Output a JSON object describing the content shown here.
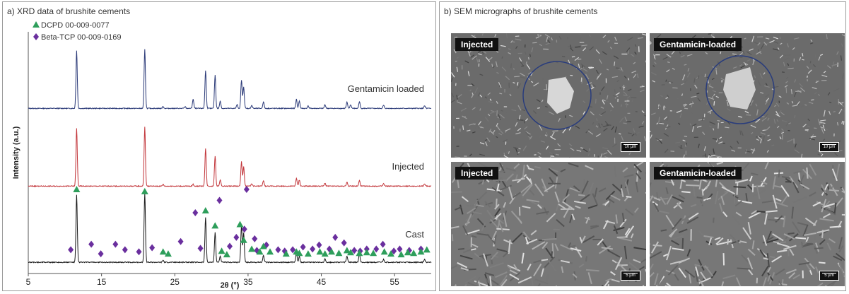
{
  "panel_a": {
    "title": "a) XRD data of brushite cements"
  },
  "panel_b": {
    "title": "b) SEM micrographs of brushite cements",
    "images": [
      {
        "label": "Injected",
        "scale": "10 µm"
      },
      {
        "label": "Gentamicin-loaded",
        "scale": "10 µm"
      },
      {
        "label": "Injected",
        "scale": "5 µm"
      },
      {
        "label": "Gentamicin-loaded",
        "scale": "5 µm"
      }
    ]
  },
  "colors": {
    "gentamicin": "#2b3a78",
    "injected": "#c2353a",
    "cast": "#1a1a1a",
    "dcpd": "#2e9e5b",
    "btcp": "#6a2f9e"
  },
  "chart_data": {
    "type": "line",
    "xlabel": "2θ (°)",
    "ylabel": "Intensity (a.u.)",
    "xlim": [
      5,
      60
    ],
    "xticks": [
      5,
      15,
      25,
      35,
      45,
      55
    ],
    "legend": {
      "placement": "top-left",
      "entries": [
        {
          "name": "DCPD 00-009-0077",
          "marker": "triangle"
        },
        {
          "name": "Beta-TCP 00-009-0169",
          "marker": "diamond"
        }
      ]
    },
    "series": [
      {
        "name": "Gentamicin loaded",
        "peaks": [
          [
            11.6,
            95
          ],
          [
            20.9,
            97
          ],
          [
            23.4,
            3
          ],
          [
            26.4,
            3
          ],
          [
            27.5,
            15
          ],
          [
            29.2,
            62
          ],
          [
            30.5,
            55
          ],
          [
            31.2,
            12
          ],
          [
            33.5,
            6
          ],
          [
            34.1,
            47
          ],
          [
            34.4,
            36
          ],
          [
            35.5,
            5
          ],
          [
            37.1,
            11
          ],
          [
            41.6,
            15
          ],
          [
            42.0,
            12
          ],
          [
            43.2,
            4
          ],
          [
            45.5,
            6
          ],
          [
            48.5,
            10
          ],
          [
            49.0,
            6
          ],
          [
            50.2,
            11
          ],
          [
            53.5,
            5
          ],
          [
            59.1,
            4
          ]
        ]
      },
      {
        "name": "Injected",
        "peaks": [
          [
            11.6,
            95
          ],
          [
            20.9,
            97
          ],
          [
            23.4,
            3
          ],
          [
            27.5,
            3
          ],
          [
            29.2,
            62
          ],
          [
            30.5,
            50
          ],
          [
            31.2,
            10
          ],
          [
            34.1,
            40
          ],
          [
            34.4,
            32
          ],
          [
            35.5,
            4
          ],
          [
            37.1,
            9
          ],
          [
            41.6,
            13
          ],
          [
            42.0,
            10
          ],
          [
            45.5,
            5
          ],
          [
            48.5,
            7
          ],
          [
            50.2,
            9
          ],
          [
            53.5,
            4
          ],
          [
            59.1,
            4
          ]
        ]
      },
      {
        "name": "Cast",
        "peaks": [
          [
            11.6,
            97
          ],
          [
            20.9,
            100
          ],
          [
            23.4,
            3
          ],
          [
            29.2,
            65
          ],
          [
            30.5,
            43
          ],
          [
            31.2,
            9
          ],
          [
            34.1,
            53
          ],
          [
            34.4,
            43
          ],
          [
            37.1,
            10
          ],
          [
            41.6,
            14
          ],
          [
            42.0,
            9
          ],
          [
            45.5,
            5
          ],
          [
            48.5,
            9
          ],
          [
            50.2,
            12
          ],
          [
            53.5,
            4
          ],
          [
            59.1,
            4
          ]
        ]
      }
    ],
    "reference_markers": {
      "DCPD": [
        [
          11.6,
          100
        ],
        [
          20.9,
          97
        ],
        [
          23.4,
          9
        ],
        [
          24.1,
          6
        ],
        [
          29.2,
          69
        ],
        [
          30.5,
          47
        ],
        [
          31.4,
          10
        ],
        [
          32.1,
          5
        ],
        [
          33.9,
          49
        ],
        [
          34.4,
          26
        ],
        [
          35.5,
          13
        ],
        [
          36.6,
          9
        ],
        [
          37.1,
          17
        ],
        [
          38.0,
          9
        ],
        [
          40.2,
          6
        ],
        [
          41.6,
          9
        ],
        [
          42.0,
          7
        ],
        [
          43.2,
          6
        ],
        [
          44.8,
          9
        ],
        [
          45.5,
          6
        ],
        [
          46.4,
          9
        ],
        [
          47.4,
          7
        ],
        [
          48.5,
          11
        ],
        [
          49.0,
          8
        ],
        [
          50.2,
          7
        ],
        [
          51.2,
          8
        ],
        [
          52.1,
          7
        ],
        [
          53.6,
          9
        ],
        [
          54.5,
          6
        ],
        [
          55.9,
          5
        ],
        [
          56.8,
          8
        ],
        [
          57.6,
          7
        ],
        [
          58.6,
          9
        ],
        [
          59.4,
          12
        ]
      ],
      "Beta-TCP": [
        [
          10.8,
          12
        ],
        [
          13.6,
          20
        ],
        [
          14.9,
          6
        ],
        [
          16.9,
          20
        ],
        [
          18.2,
          12
        ],
        [
          20.1,
          9
        ],
        [
          21.9,
          15
        ],
        [
          25.8,
          24
        ],
        [
          27.8,
          66
        ],
        [
          28.5,
          14
        ],
        [
          31.1,
          84
        ],
        [
          32.5,
          17
        ],
        [
          33.4,
          30
        ],
        [
          34.5,
          42
        ],
        [
          34.8,
          100
        ],
        [
          35.9,
          28
        ],
        [
          36.2,
          11
        ],
        [
          37.5,
          19
        ],
        [
          39.1,
          12
        ],
        [
          40.0,
          10
        ],
        [
          41.1,
          12
        ],
        [
          42.5,
          16
        ],
        [
          43.8,
          13
        ],
        [
          44.7,
          19
        ],
        [
          46.1,
          13
        ],
        [
          46.9,
          30
        ],
        [
          48.1,
          22
        ],
        [
          49.5,
          11
        ],
        [
          50.3,
          10
        ],
        [
          51.2,
          13
        ],
        [
          52.5,
          13
        ],
        [
          53.4,
          20
        ],
        [
          54.9,
          10
        ],
        [
          55.7,
          13
        ],
        [
          57.0,
          11
        ],
        [
          58.6,
          13
        ]
      ]
    }
  }
}
